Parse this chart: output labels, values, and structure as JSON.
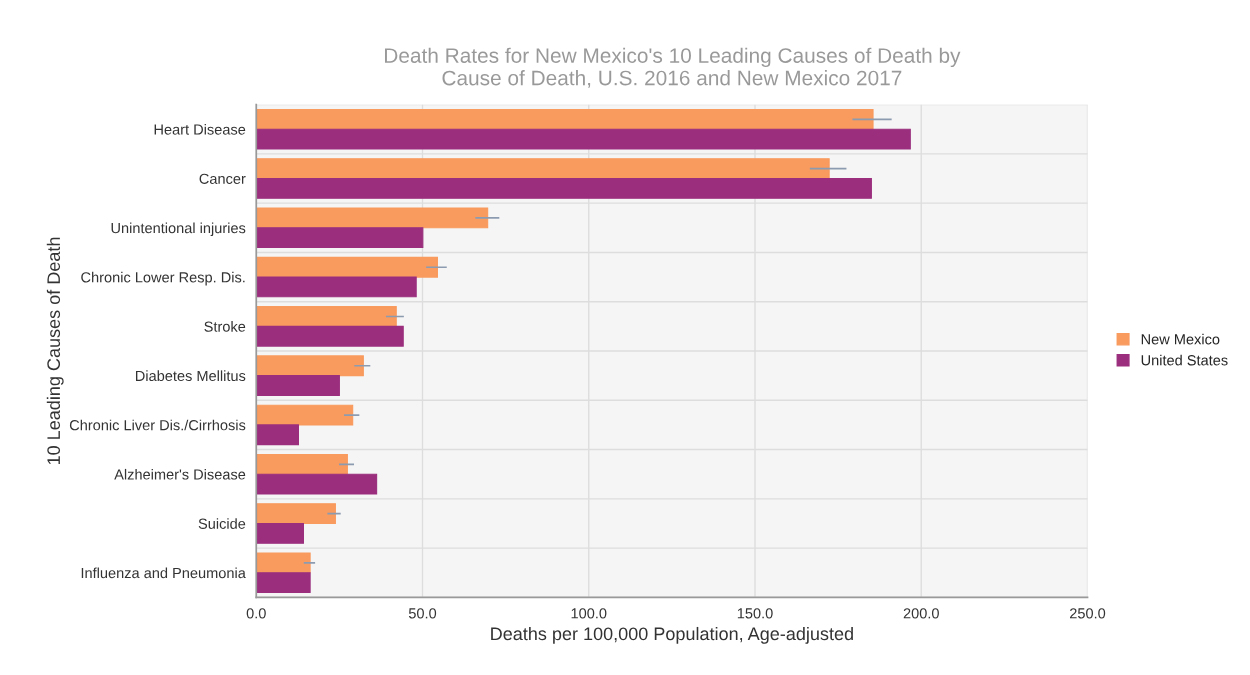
{
  "chart_data": {
    "type": "bar",
    "orientation": "horizontal",
    "title": "Death Rates for New Mexico's 10 Leading Causes of Death by\nCause of Death, U.S. 2016 and New Mexico 2017",
    "xlabel": "Deaths per 100,000 Population, Age-adjusted",
    "ylabel": "10 Leading Causes of Death",
    "categories": [
      "Heart Disease",
      "Cancer",
      "Unintentional injuries",
      "Chronic Lower Resp. Dis.",
      "Stroke",
      "Diabetes Mellitus",
      "Chronic Liver Dis./Cirrhosis",
      "Alzheimer's Disease",
      "Suicide",
      "Influenza and Pneumonia"
    ],
    "series": [
      {
        "name": "New Mexico",
        "color": "#f99a5e",
        "values": [
          185.5,
          172.3,
          69.6,
          54.5,
          42.1,
          32.2,
          29.0,
          27.4,
          23.8,
          16.2
        ],
        "errors": [
          [
            179.3,
            191.1
          ],
          [
            166.5,
            177.5
          ],
          [
            65.9,
            73.1
          ],
          [
            51.1,
            57.3
          ],
          [
            39.0,
            44.4
          ],
          [
            29.5,
            34.3
          ],
          [
            26.4,
            31.0
          ],
          [
            24.9,
            29.4
          ],
          [
            21.4,
            25.4
          ],
          [
            14.3,
            17.7
          ]
        ]
      },
      {
        "name": "United States",
        "color": "#9b2f7e",
        "values": [
          196.7,
          185.0,
          50.1,
          48.1,
          44.2,
          25.0,
          12.7,
          36.2,
          14.2,
          16.2
        ]
      }
    ],
    "xlim": [
      0,
      250
    ],
    "xticks": [
      {
        "value": 0,
        "label": "0.0"
      },
      {
        "value": 50,
        "label": "50.0"
      },
      {
        "value": 100,
        "label": "100.0"
      },
      {
        "value": 150,
        "label": "150.0"
      },
      {
        "value": 200,
        "label": "200.0"
      },
      {
        "value": 250,
        "label": "250.0"
      }
    ],
    "grid": true,
    "legend": "right"
  }
}
